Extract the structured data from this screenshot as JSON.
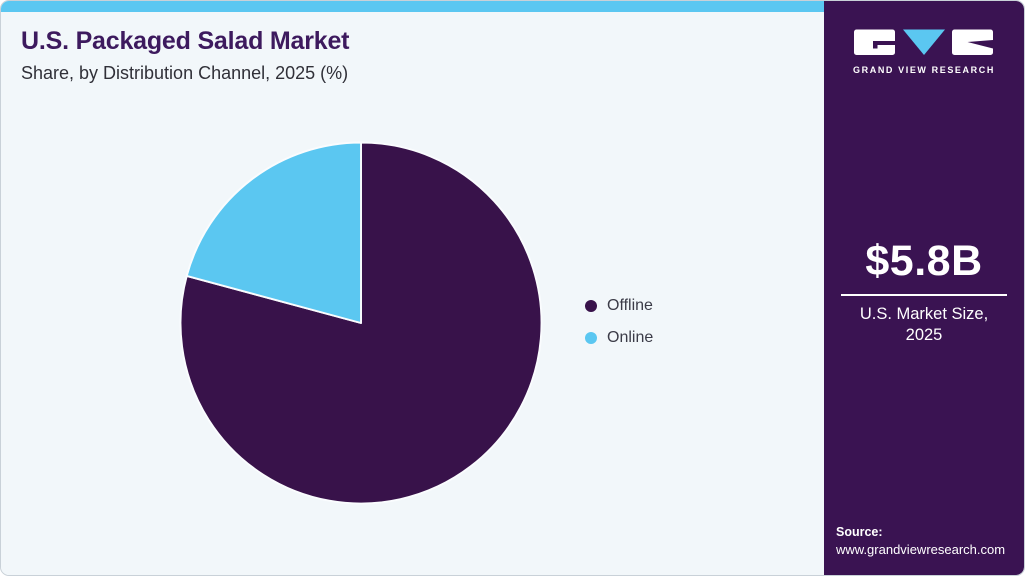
{
  "header": {
    "title": "U.S. Packaged Salad Market",
    "subtitle": "Share, by Distribution Channel, 2025 (%)"
  },
  "legend": {
    "items": [
      {
        "label": "Offline",
        "color": "#38124A"
      },
      {
        "label": "Online",
        "color": "#5BC7F1"
      }
    ]
  },
  "sidebar": {
    "logo": {
      "brand": "GRAND VIEW RESEARCH",
      "icon": "gvr-logo-icon"
    },
    "market_size": {
      "value": "$5.8B",
      "label": "U.S. Market Size, 2025"
    },
    "source": {
      "label": "Source:",
      "url": "www.grandviewresearch.com"
    }
  },
  "colors": {
    "accent_blue": "#5BC7F1",
    "pie_purple": "#38124A",
    "panel_purple": "#3A1352",
    "title_purple": "#3D1A5E",
    "page_bg": "#F2F7FA",
    "slice_stroke": "#FAFCFE"
  },
  "chart_data": {
    "type": "pie",
    "title": "U.S. Packaged Salad Market",
    "subtitle": "Share, by Distribution Channel, 2025 (%)",
    "unit": "%",
    "slices": [
      {
        "label": "Offline",
        "value": 79.2,
        "color": "#38124A"
      },
      {
        "label": "Online",
        "value": 20.8,
        "color": "#5BC7F1"
      }
    ],
    "start_angle": "top",
    "direction": "clockwise",
    "data_labels": false,
    "legend_position": "right"
  }
}
